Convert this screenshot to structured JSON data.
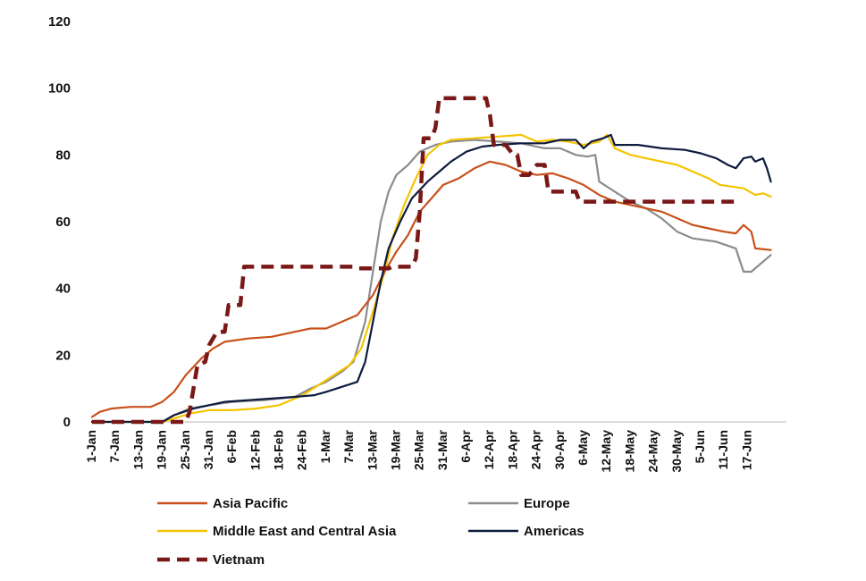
{
  "chart_data": {
    "type": "line",
    "title": "",
    "xlabel": "",
    "ylabel": "",
    "ylim": [
      0,
      120
    ],
    "yticks": [
      0,
      20,
      40,
      60,
      80,
      100,
      120
    ],
    "grid": false,
    "legend_position": "bottom",
    "x_day_range": [
      0,
      178
    ],
    "x_tick_labels": [
      "1-Jan",
      "7-Jan",
      "13-Jan",
      "19-Jan",
      "25-Jan",
      "31-Jan",
      "6-Feb",
      "12-Feb",
      "18-Feb",
      "24-Feb",
      "1-Mar",
      "7-Mar",
      "13-Mar",
      "19-Mar",
      "25-Mar",
      "31-Mar",
      "6-Apr",
      "12-Apr",
      "18-Apr",
      "24-Apr",
      "30-Apr",
      "6-May",
      "12-May",
      "18-May",
      "24-May",
      "30-May",
      "5-Jun",
      "11-Jun",
      "17-Jun"
    ],
    "x_tick_days": [
      0,
      6,
      12,
      18,
      24,
      30,
      36,
      42,
      48,
      54,
      60,
      66,
      72,
      78,
      84,
      90,
      96,
      102,
      108,
      114,
      120,
      126,
      132,
      138,
      144,
      150,
      156,
      162,
      168
    ],
    "series": [
      {
        "name": "Asia Pacific",
        "color": "#c8501a",
        "dashed": false,
        "points": [
          [
            0,
            1.5
          ],
          [
            2,
            3
          ],
          [
            5,
            4
          ],
          [
            10,
            4.5
          ],
          [
            15,
            4.5
          ],
          [
            18,
            6
          ],
          [
            21,
            9
          ],
          [
            24,
            14
          ],
          [
            28,
            19
          ],
          [
            31,
            22
          ],
          [
            34,
            24
          ],
          [
            40,
            25
          ],
          [
            46,
            25.5
          ],
          [
            52,
            27
          ],
          [
            56,
            28
          ],
          [
            60,
            28
          ],
          [
            64,
            30
          ],
          [
            68,
            32
          ],
          [
            72,
            38
          ],
          [
            75,
            45
          ],
          [
            78,
            51
          ],
          [
            81,
            56
          ],
          [
            84,
            63
          ],
          [
            87,
            67
          ],
          [
            90,
            71
          ],
          [
            94,
            73
          ],
          [
            98,
            76
          ],
          [
            102,
            78
          ],
          [
            106,
            77
          ],
          [
            110,
            75
          ],
          [
            114,
            74
          ],
          [
            118,
            74.5
          ],
          [
            122,
            73
          ],
          [
            126,
            71
          ],
          [
            130,
            68
          ],
          [
            134,
            66
          ],
          [
            138,
            65
          ],
          [
            142,
            64
          ],
          [
            146,
            63
          ],
          [
            150,
            61
          ],
          [
            154,
            59
          ],
          [
            158,
            58
          ],
          [
            162,
            57
          ],
          [
            165,
            56.5
          ],
          [
            167,
            59
          ],
          [
            169,
            57
          ],
          [
            170,
            52
          ],
          [
            174,
            51.5
          ]
        ]
      },
      {
        "name": "Europe",
        "color": "#8c8c8c",
        "dashed": false,
        "points": [
          [
            0,
            0
          ],
          [
            18,
            0
          ],
          [
            21,
            2
          ],
          [
            25,
            4
          ],
          [
            30,
            5
          ],
          [
            36,
            6
          ],
          [
            44,
            6.5
          ],
          [
            52,
            7.5
          ],
          [
            56,
            10
          ],
          [
            60,
            12
          ],
          [
            64,
            15
          ],
          [
            67,
            18
          ],
          [
            70,
            30
          ],
          [
            72,
            45
          ],
          [
            74,
            60
          ],
          [
            76,
            69
          ],
          [
            78,
            74
          ],
          [
            81,
            77
          ],
          [
            84,
            81
          ],
          [
            88,
            83
          ],
          [
            92,
            84
          ],
          [
            98,
            84.5
          ],
          [
            104,
            84
          ],
          [
            110,
            83.5
          ],
          [
            116,
            82
          ],
          [
            120,
            82
          ],
          [
            124,
            80
          ],
          [
            127,
            79.5
          ],
          [
            129,
            80
          ],
          [
            130,
            72
          ],
          [
            134,
            69
          ],
          [
            138,
            66
          ],
          [
            142,
            64
          ],
          [
            146,
            61
          ],
          [
            150,
            57
          ],
          [
            154,
            55
          ],
          [
            160,
            54
          ],
          [
            165,
            52
          ],
          [
            167,
            45
          ],
          [
            169,
            45
          ],
          [
            171,
            47
          ],
          [
            174,
            50
          ]
        ]
      },
      {
        "name": "Middle East and Central Asia",
        "color": "#f5c400",
        "dashed": false,
        "points": [
          [
            0,
            0
          ],
          [
            18,
            0
          ],
          [
            21,
            1
          ],
          [
            25,
            2.5
          ],
          [
            30,
            3.5
          ],
          [
            36,
            3.5
          ],
          [
            42,
            4
          ],
          [
            48,
            5
          ],
          [
            54,
            8
          ],
          [
            58,
            11
          ],
          [
            62,
            14
          ],
          [
            66,
            17
          ],
          [
            69,
            22
          ],
          [
            72,
            33
          ],
          [
            75,
            45
          ],
          [
            77,
            55
          ],
          [
            80,
            65
          ],
          [
            83,
            73
          ],
          [
            86,
            80
          ],
          [
            89,
            83
          ],
          [
            92,
            84.5
          ],
          [
            98,
            85
          ],
          [
            104,
            85.5
          ],
          [
            110,
            86
          ],
          [
            114,
            84
          ],
          [
            118,
            84.5
          ],
          [
            122,
            84
          ],
          [
            126,
            83
          ],
          [
            130,
            84
          ],
          [
            132,
            86
          ],
          [
            134,
            82
          ],
          [
            138,
            80
          ],
          [
            142,
            79
          ],
          [
            146,
            78
          ],
          [
            150,
            77
          ],
          [
            154,
            75
          ],
          [
            158,
            73
          ],
          [
            161,
            71
          ],
          [
            164,
            70.5
          ],
          [
            167,
            70
          ],
          [
            170,
            68
          ],
          [
            172,
            68.5
          ],
          [
            174,
            67.5
          ]
        ]
      },
      {
        "name": "Americas",
        "color": "#0d1b3e",
        "dashed": false,
        "points": [
          [
            0,
            0
          ],
          [
            18,
            0
          ],
          [
            21,
            2
          ],
          [
            26,
            4
          ],
          [
            30,
            5
          ],
          [
            34,
            6
          ],
          [
            40,
            6.5
          ],
          [
            46,
            7
          ],
          [
            52,
            7.5
          ],
          [
            57,
            8
          ],
          [
            60,
            9
          ],
          [
            64,
            10.5
          ],
          [
            68,
            12
          ],
          [
            70,
            18
          ],
          [
            72,
            30
          ],
          [
            74,
            42
          ],
          [
            76,
            52
          ],
          [
            79,
            60
          ],
          [
            82,
            67
          ],
          [
            86,
            72
          ],
          [
            89,
            75
          ],
          [
            92,
            78
          ],
          [
            96,
            81
          ],
          [
            100,
            82.5
          ],
          [
            104,
            83
          ],
          [
            110,
            83.5
          ],
          [
            116,
            83.5
          ],
          [
            120,
            84.5
          ],
          [
            124,
            84.5
          ],
          [
            126,
            82
          ],
          [
            128,
            84
          ],
          [
            131,
            85
          ],
          [
            133,
            86
          ],
          [
            134,
            83
          ],
          [
            140,
            83
          ],
          [
            146,
            82
          ],
          [
            152,
            81.5
          ],
          [
            156,
            80.5
          ],
          [
            160,
            79
          ],
          [
            163,
            77
          ],
          [
            165,
            76
          ],
          [
            167,
            79
          ],
          [
            169,
            79.5
          ],
          [
            170,
            78
          ],
          [
            172,
            79
          ],
          [
            173,
            76
          ],
          [
            174,
            72
          ]
        ]
      },
      {
        "name": "Vietnam",
        "color": "#7a1818",
        "dashed": true,
        "points": [
          [
            0,
            0
          ],
          [
            24,
            0
          ],
          [
            25,
            3
          ],
          [
            26,
            10
          ],
          [
            27,
            17
          ],
          [
            29,
            18
          ],
          [
            30,
            23
          ],
          [
            32,
            27
          ],
          [
            34,
            27
          ],
          [
            35,
            35
          ],
          [
            38,
            35
          ],
          [
            39,
            46.5
          ],
          [
            67,
            46.5
          ],
          [
            68,
            46
          ],
          [
            76,
            46
          ],
          [
            77,
            46.5
          ],
          [
            82,
            46.5
          ],
          [
            83,
            49
          ],
          [
            84,
            63
          ],
          [
            85,
            85
          ],
          [
            87,
            85
          ],
          [
            88,
            88
          ],
          [
            89,
            97
          ],
          [
            101,
            97
          ],
          [
            102,
            92
          ],
          [
            103,
            83
          ],
          [
            106,
            83
          ],
          [
            108,
            80
          ],
          [
            109,
            80
          ],
          [
            110,
            74
          ],
          [
            112,
            74
          ],
          [
            114,
            77
          ],
          [
            116,
            77
          ],
          [
            117,
            69
          ],
          [
            124,
            69
          ],
          [
            125,
            66
          ],
          [
            150,
            66
          ],
          [
            155,
            66
          ],
          [
            160,
            66
          ],
          [
            166,
            66
          ]
        ]
      }
    ]
  }
}
